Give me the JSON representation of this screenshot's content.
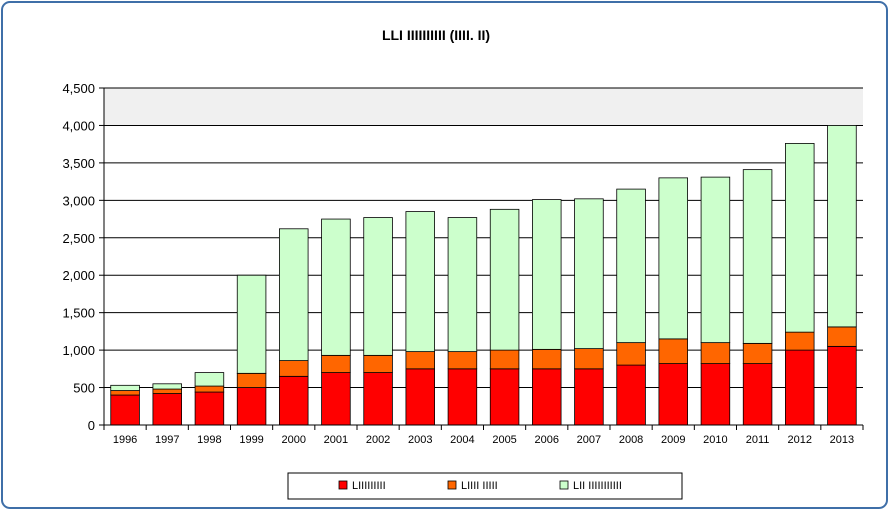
{
  "chart_data": {
    "type": "bar",
    "stacked": true,
    "title": "LLI IIIIIIIIII (IIII. II)",
    "xlabel": "",
    "ylabel": "",
    "categories": [
      "1996",
      "1997",
      "1998",
      "1999",
      "2000",
      "2001",
      "2002",
      "2003",
      "2004",
      "2005",
      "2006",
      "2007",
      "2008",
      "2009",
      "2010",
      "2011",
      "2012",
      "2013"
    ],
    "series": [
      {
        "name": "LIIIIIIIII",
        "color": "#ff0000",
        "values": [
          400,
          420,
          440,
          500,
          650,
          700,
          700,
          750,
          750,
          750,
          750,
          750,
          800,
          820,
          820,
          820,
          1000,
          1050
        ]
      },
      {
        "name": "LIIII IIIII",
        "color": "#ff6600",
        "values": [
          60,
          60,
          80,
          190,
          210,
          230,
          230,
          230,
          230,
          250,
          260,
          270,
          300,
          330,
          280,
          270,
          240,
          260
        ]
      },
      {
        "name": "LII IIIIIIIIIII",
        "color": "#ccffcc",
        "values": [
          70,
          70,
          180,
          1310,
          1760,
          1820,
          1840,
          1870,
          1790,
          1880,
          2000,
          2000,
          2050,
          2150,
          2210,
          2320,
          2520,
          2690
        ]
      }
    ],
    "ylim": [
      0,
      4500
    ],
    "yticks": [
      "0",
      "500",
      "1,000",
      "1,500",
      "2,000",
      "2,500",
      "3,000",
      "3,500",
      "4,000",
      "4,500"
    ],
    "grid": true,
    "legend": "bottom"
  }
}
